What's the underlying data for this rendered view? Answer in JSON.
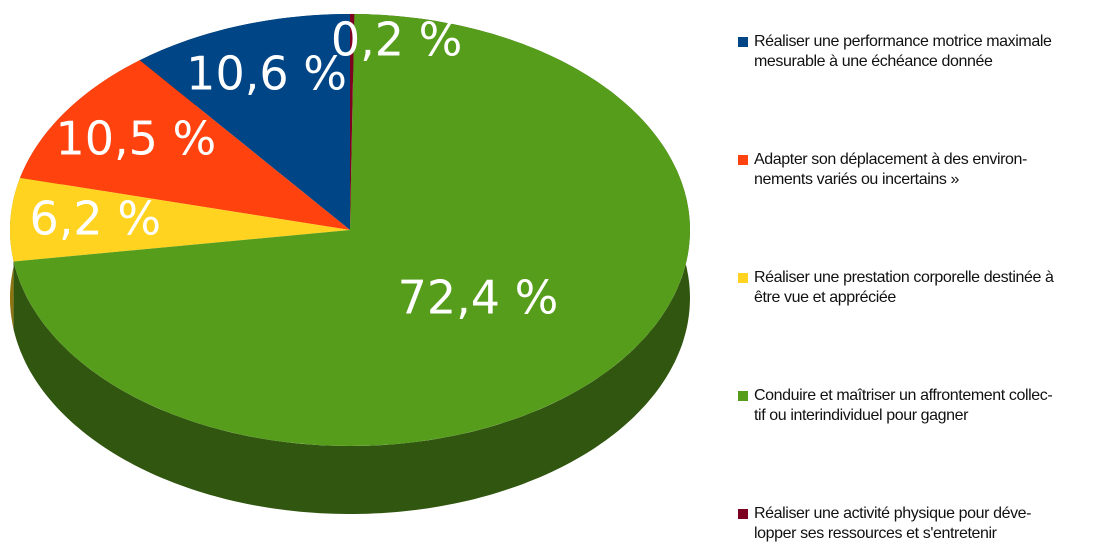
{
  "chart_data": {
    "type": "pie3d",
    "series": [
      {
        "name": "Réaliser une performance motrice maximale\nmesurable à une échéance donnée",
        "color": "#004586",
        "values": [
          10.6
        ],
        "value_labels": [
          "10,6 %"
        ]
      },
      {
        "name": "Adapter son déplacement à des environ-\nnements variés ou incertains »",
        "color": "#ff420e",
        "values": [
          10.5
        ],
        "value_labels": [
          "10,5 %"
        ]
      },
      {
        "name": "Réaliser une prestation corporelle destinée à\nêtre vue et appréciée",
        "color": "#ffd320",
        "values": [
          6.2
        ],
        "value_labels": [
          "6,2 %"
        ]
      },
      {
        "name": "Conduire et maîtriser un affrontement collec-\ntif ou interindividuel pour gagner",
        "color": "#579d1c",
        "values": [
          72.4
        ],
        "value_labels": [
          "72,4 %"
        ]
      },
      {
        "name": "Réaliser une activité physique pour déve-\nlopper ses ressources et s'entretenir",
        "color": "#7e0021",
        "values": [
          0.2
        ],
        "value_labels": [
          "0,2 %"
        ]
      }
    ],
    "legend": "right"
  }
}
